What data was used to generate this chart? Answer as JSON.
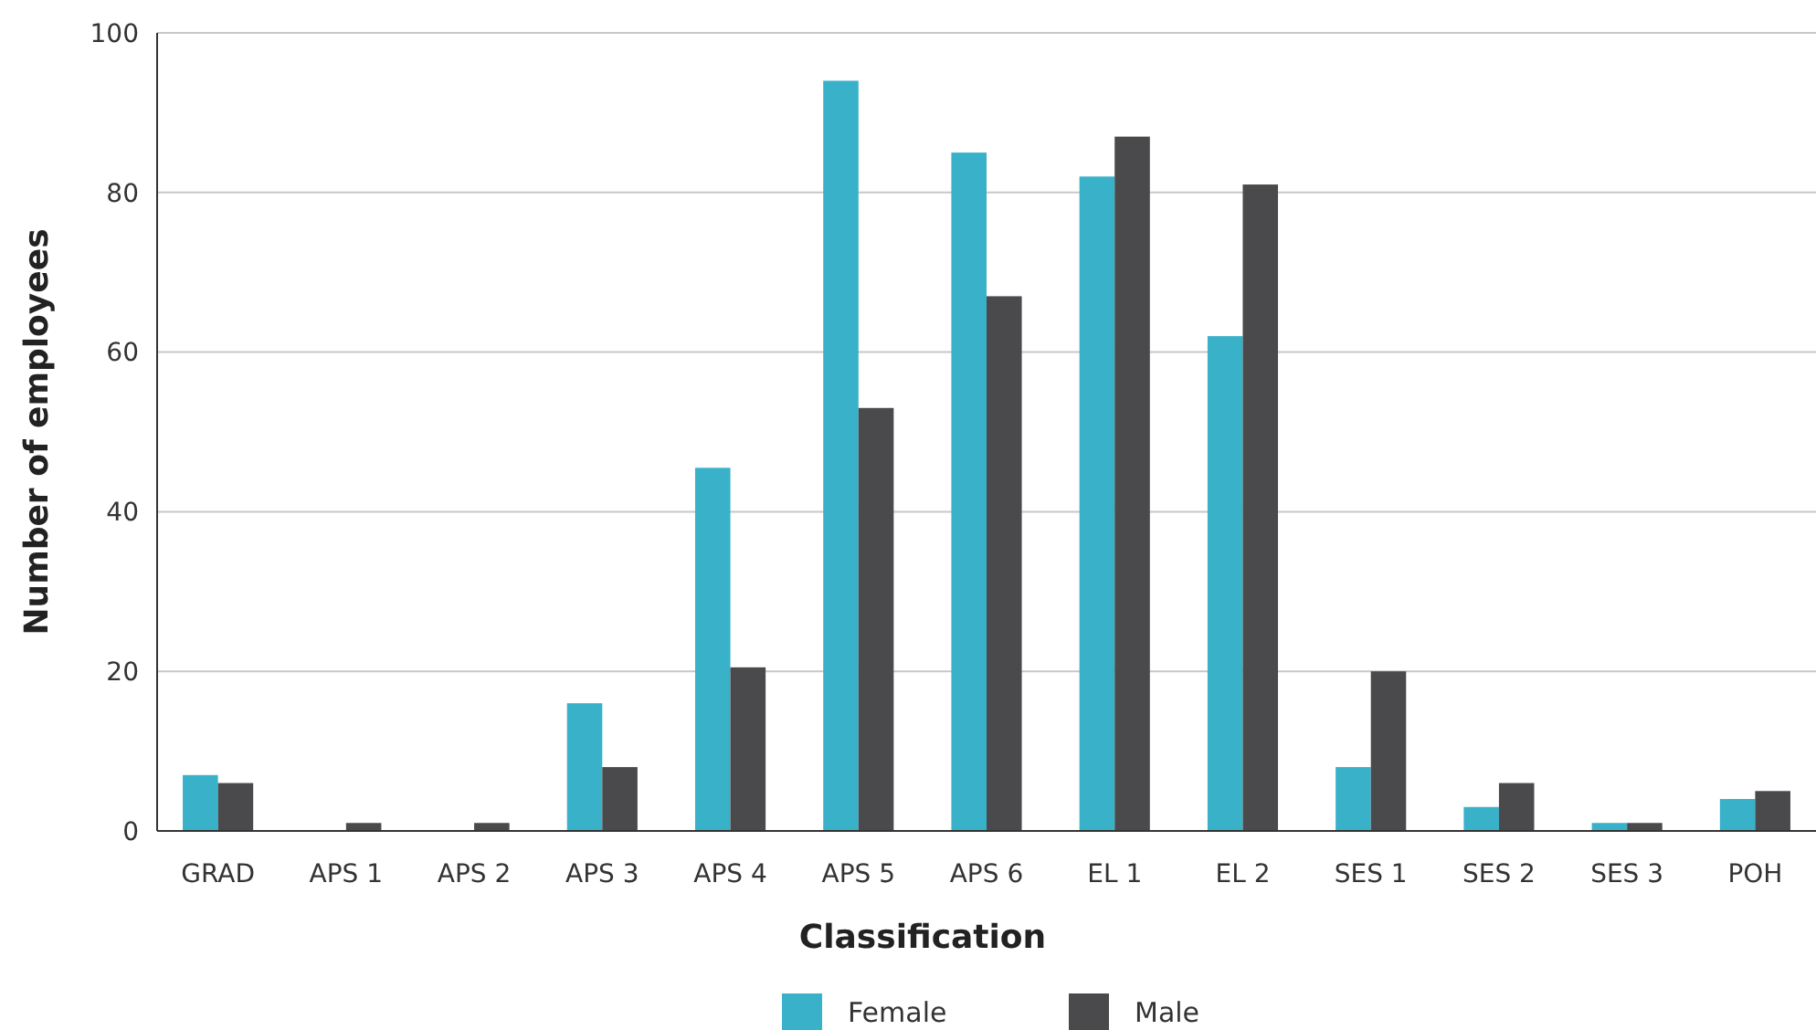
{
  "chart_data": {
    "type": "bar",
    "xlabel": "Classification",
    "ylabel": "Number of employees",
    "categories": [
      "GRAD",
      "APS 1",
      "APS 2",
      "APS 3",
      "APS 4",
      "APS 5",
      "APS 6",
      "EL 1",
      "EL 2",
      "SES 1",
      "SES 2",
      "SES 3",
      "POH"
    ],
    "series": [
      {
        "name": "Female",
        "color": "#38b1c9",
        "values": [
          7,
          0,
          0,
          16,
          45.5,
          94,
          85,
          82,
          62,
          8,
          3,
          1,
          4
        ]
      },
      {
        "name": "Male",
        "color": "#4a4a4c",
        "values": [
          6,
          1,
          1,
          8,
          20.5,
          53,
          67,
          87,
          81,
          20,
          6,
          1,
          5
        ]
      }
    ],
    "ylim": [
      0,
      100
    ],
    "yticks": [
      0,
      20,
      40,
      60,
      80,
      100
    ],
    "grid": "y",
    "legend": "bottom"
  }
}
